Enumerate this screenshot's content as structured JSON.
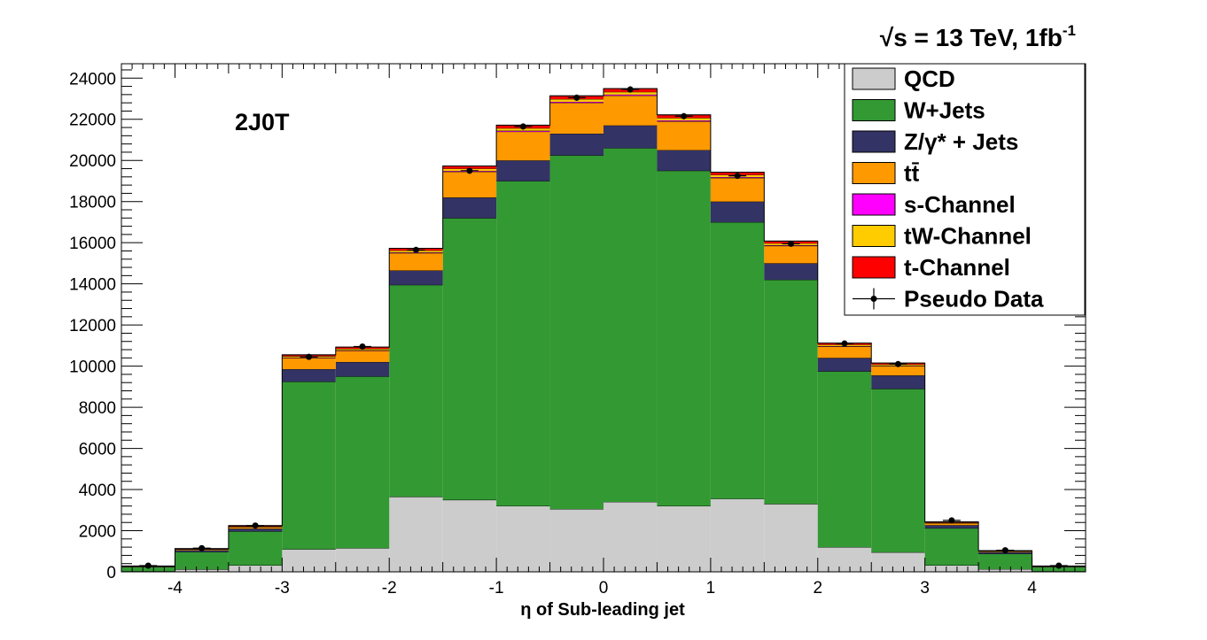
{
  "chart_data": {
    "type": "bar",
    "stacked": true,
    "title": "√s = 13 TeV, 1fb",
    "title_superscript": "-1",
    "category_text": "2J0T",
    "xlabel": "η of Sub-leading jet",
    "ylabel": "",
    "xlim": [
      -4.5,
      4.5
    ],
    "ylim": [
      0,
      24700
    ],
    "bin_edges": [
      -4.5,
      -4.0,
      -3.5,
      -3.0,
      -2.5,
      -2.0,
      -1.5,
      -1.0,
      -0.5,
      0.0,
      0.5,
      1.0,
      1.5,
      2.0,
      2.5,
      3.0,
      3.5,
      4.0,
      4.5
    ],
    "x_ticks": [
      -4,
      -3,
      -2,
      -1,
      0,
      1,
      2,
      3,
      4
    ],
    "x_tick_labels": [
      "-4",
      "-3",
      "-2",
      "-1",
      "0",
      "1",
      "2",
      "3",
      "4"
    ],
    "y_ticks": [
      0,
      2000,
      4000,
      6000,
      8000,
      10000,
      12000,
      14000,
      16000,
      18000,
      20000,
      22000,
      24000
    ],
    "y_tick_labels": [
      "0",
      "2000",
      "4000",
      "6000",
      "8000",
      "10000",
      "12000",
      "14000",
      "16000",
      "18000",
      "20000",
      "22000",
      "24000"
    ],
    "grid": false,
    "legend_position": "top-right",
    "series": [
      {
        "name": "QCD",
        "color": "#cccccc",
        "values": [
          30,
          120,
          320,
          1100,
          1150,
          3650,
          3500,
          3200,
          3050,
          3400,
          3200,
          3550,
          3300,
          1200,
          950,
          320,
          130,
          30
        ]
      },
      {
        "name": "W+Jets",
        "color": "#339933",
        "values": [
          200,
          850,
          1650,
          8150,
          8350,
          10300,
          13700,
          15800,
          17200,
          17200,
          16300,
          13450,
          10900,
          8550,
          7950,
          1800,
          750,
          200
        ]
      },
      {
        "name": "Z/γ* + Jets",
        "color": "#333366",
        "values": [
          20,
          80,
          130,
          600,
          700,
          700,
          1000,
          1000,
          1050,
          1100,
          1000,
          1000,
          800,
          650,
          650,
          150,
          80,
          20
        ]
      },
      {
        "name": "tt̄",
        "color": "#ff9900",
        "values": [
          20,
          50,
          80,
          550,
          550,
          850,
          1250,
          1400,
          1500,
          1450,
          1400,
          1150,
          850,
          550,
          450,
          100,
          40,
          20
        ]
      },
      {
        "name": "s-Channel",
        "color": "#ff00ff",
        "values": [
          3,
          5,
          10,
          20,
          25,
          30,
          40,
          45,
          50,
          50,
          45,
          40,
          30,
          25,
          20,
          10,
          5,
          3
        ]
      },
      {
        "name": "tW-Channel",
        "color": "#ffcc00",
        "values": [
          5,
          10,
          20,
          60,
          70,
          90,
          110,
          120,
          130,
          130,
          120,
          110,
          90,
          70,
          60,
          20,
          10,
          5
        ]
      },
      {
        "name": "t-Channel",
        "color": "#ff0000",
        "values": [
          7,
          15,
          40,
          70,
          80,
          110,
          130,
          150,
          160,
          160,
          150,
          130,
          110,
          80,
          70,
          30,
          15,
          7
        ]
      }
    ],
    "data_series": {
      "name": "Pseudo Data",
      "color": "#000000",
      "x": [
        -4.25,
        -3.75,
        -3.25,
        -2.75,
        -2.25,
        -1.75,
        -1.25,
        -0.75,
        -0.25,
        0.25,
        0.75,
        1.25,
        1.75,
        2.25,
        2.75,
        3.25,
        3.75,
        4.25
      ],
      "values": [
        300,
        1150,
        2250,
        10450,
        10950,
        15650,
        19500,
        21650,
        23050,
        23450,
        22150,
        19250,
        15950,
        11100,
        10100,
        2500,
        1050,
        300
      ],
      "errors": [
        17,
        34,
        47,
        102,
        105,
        125,
        140,
        147,
        152,
        153,
        149,
        139,
        126,
        105,
        100,
        50,
        32,
        17
      ]
    }
  }
}
